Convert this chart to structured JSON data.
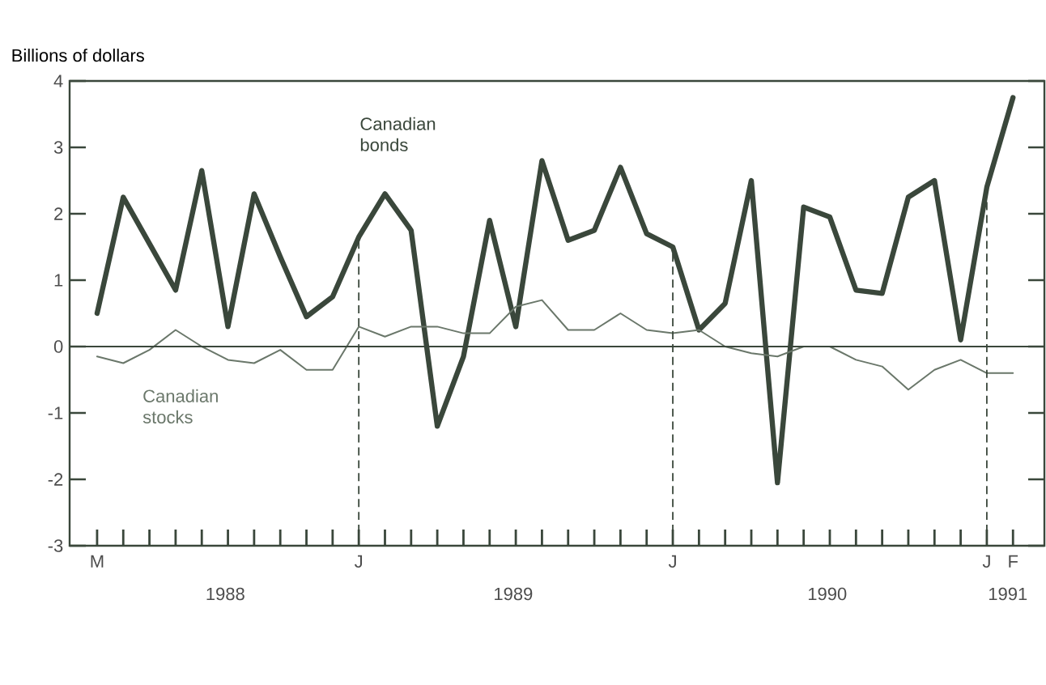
{
  "chart_data": {
    "type": "line",
    "ylabel": "Billions of dollars",
    "categories": [
      "M",
      null,
      null,
      null,
      null,
      null,
      null,
      null,
      null,
      null,
      "J",
      null,
      null,
      null,
      null,
      null,
      null,
      null,
      null,
      null,
      null,
      null,
      "J",
      null,
      null,
      null,
      null,
      null,
      null,
      null,
      null,
      null,
      null,
      null,
      "J",
      "F"
    ],
    "series": [
      {
        "name": "Canadian bonds",
        "color": "#3a473b",
        "values": [
          0.5,
          2.25,
          1.55,
          0.85,
          2.65,
          0.3,
          2.3,
          1.35,
          0.45,
          0.75,
          1.65,
          2.3,
          1.75,
          -1.2,
          -0.15,
          1.9,
          0.3,
          2.8,
          1.6,
          1.75,
          2.7,
          1.7,
          1.5,
          0.25,
          0.65,
          2.5,
          -2.05,
          2.1,
          1.95,
          0.85,
          0.8,
          2.25,
          2.5,
          0.1,
          2.4,
          3.75
        ]
      },
      {
        "name": "Canadian stocks",
        "color": "#6a776a",
        "values": [
          -0.15,
          -0.25,
          -0.05,
          0.25,
          0.0,
          -0.2,
          -0.25,
          -0.05,
          -0.35,
          -0.35,
          0.3,
          0.15,
          0.3,
          0.3,
          0.2,
          0.2,
          0.6,
          0.7,
          0.25,
          0.25,
          0.5,
          0.25,
          0.2,
          0.25,
          0.0,
          -0.1,
          -0.15,
          0.0,
          0.0,
          -0.2,
          -0.3,
          -0.65,
          -0.35,
          -0.2,
          -0.4,
          -0.4
        ]
      }
    ],
    "ylim": [
      -3,
      4
    ],
    "yticks": [
      -3,
      -2,
      -1,
      0,
      1,
      2,
      3,
      4
    ],
    "ref_lines": [
      {
        "axis": "y",
        "value": 0,
        "color": "#3a473b",
        "line_style": "solid"
      }
    ],
    "annotations": [
      "1988",
      "1989",
      "1990",
      "1991"
    ],
    "grid": false,
    "legend": false,
    "marker": "none",
    "line_style": "solid"
  }
}
